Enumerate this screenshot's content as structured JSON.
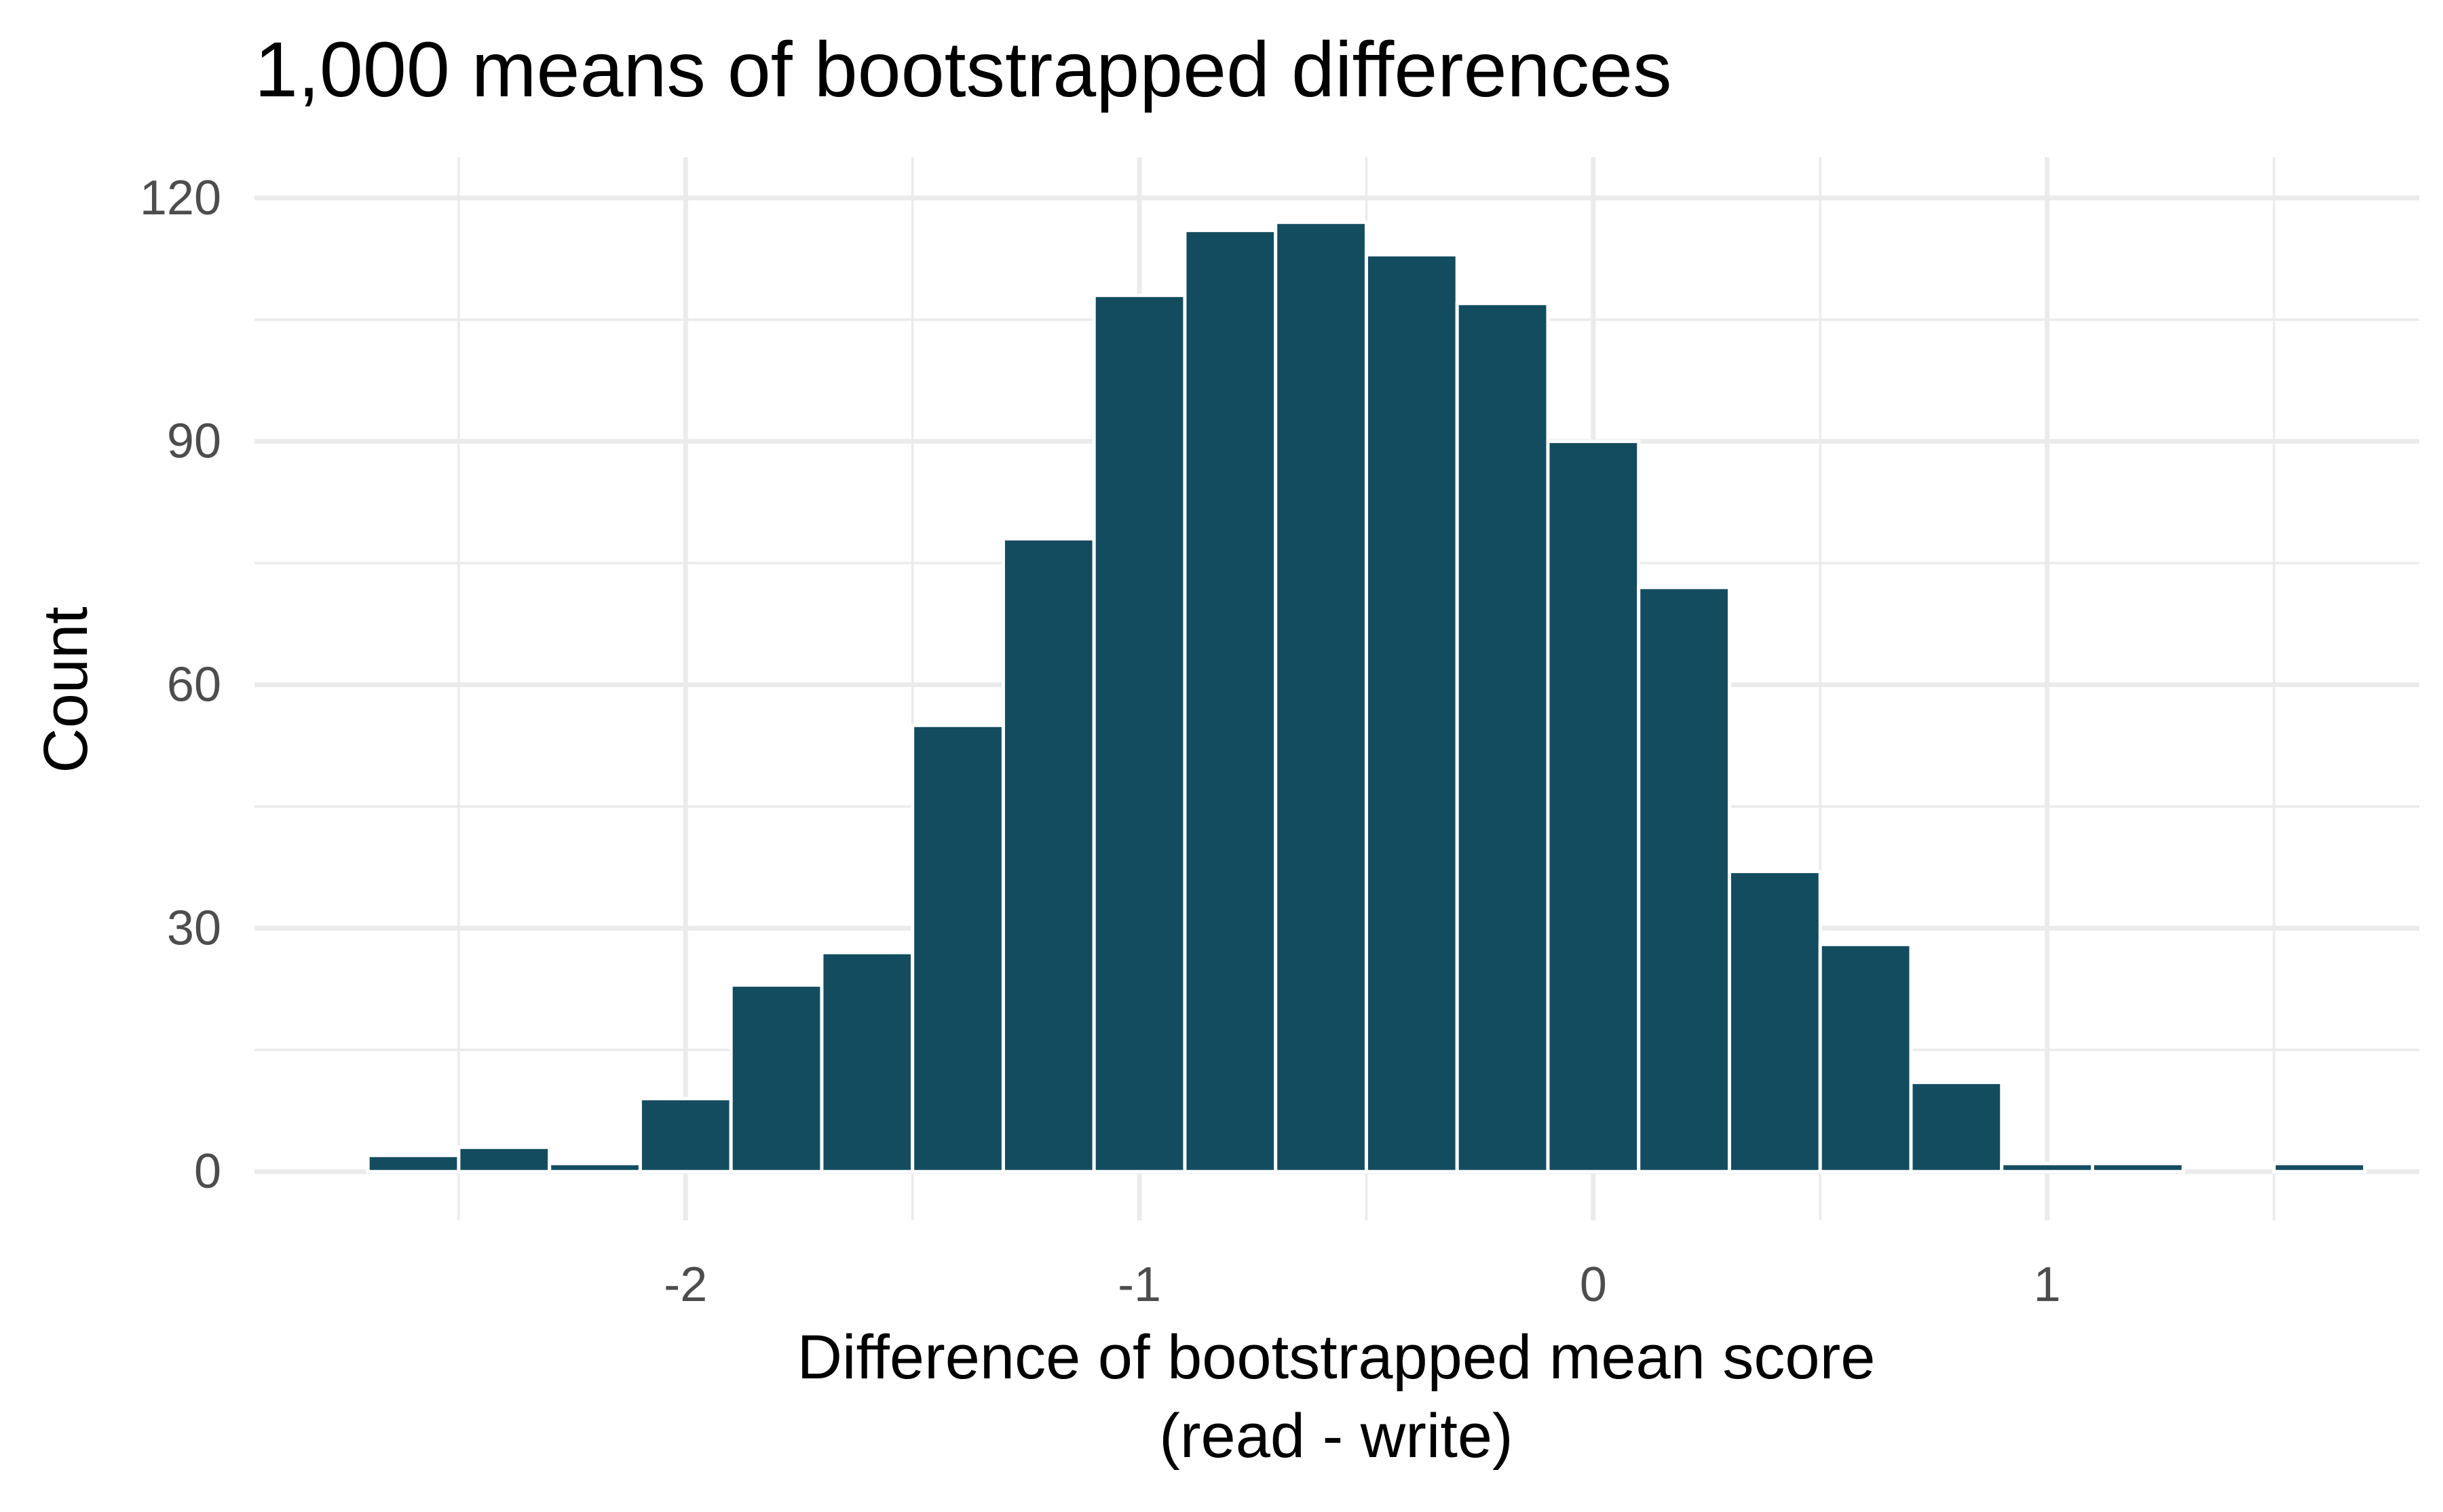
{
  "colors": {
    "bar_fill": "#134C5F",
    "bar_outline": "#FFFFFF",
    "grid": "#EBEBEB",
    "background": "#FFFFFF"
  },
  "chart_data": {
    "type": "bar",
    "title": "1,000 means of bootstrapped differences",
    "xlabel_line1": "Difference of bootstrapped mean score",
    "xlabel_line2": "(read - write)",
    "ylabel": "Count",
    "grid": true,
    "legend": "none",
    "xlim": [
      -2.95,
      1.82
    ],
    "ylim": [
      -6,
      125
    ],
    "x_ticks": [
      -2,
      -1,
      0,
      1
    ],
    "x_tick_labels": [
      "-2",
      "-1",
      "0",
      "1"
    ],
    "y_ticks": [
      0,
      30,
      60,
      90,
      120
    ],
    "y_tick_labels": [
      "0",
      "30",
      "60",
      "90",
      "120"
    ],
    "bin_width": 0.2,
    "bins": [
      {
        "x": -2.6,
        "count": 2
      },
      {
        "x": -2.4,
        "count": 3
      },
      {
        "x": -2.2,
        "count": 1
      },
      {
        "x": -2.0,
        "count": 9
      },
      {
        "x": -1.8,
        "count": 23
      },
      {
        "x": -1.6,
        "count": 27
      },
      {
        "x": -1.4,
        "count": 55
      },
      {
        "x": -1.2,
        "count": 78
      },
      {
        "x": -1.0,
        "count": 108
      },
      {
        "x": -0.8,
        "count": 116
      },
      {
        "x": -0.6,
        "count": 117
      },
      {
        "x": -0.4,
        "count": 113
      },
      {
        "x": -0.2,
        "count": 107
      },
      {
        "x": 0.0,
        "count": 90
      },
      {
        "x": 0.2,
        "count": 72
      },
      {
        "x": 0.4,
        "count": 37
      },
      {
        "x": 0.6,
        "count": 28
      },
      {
        "x": 0.8,
        "count": 11
      },
      {
        "x": 1.0,
        "count": 1
      },
      {
        "x": 1.2,
        "count": 1
      },
      {
        "x": 1.4,
        "count": 0
      },
      {
        "x": 1.6,
        "count": 1
      }
    ]
  }
}
